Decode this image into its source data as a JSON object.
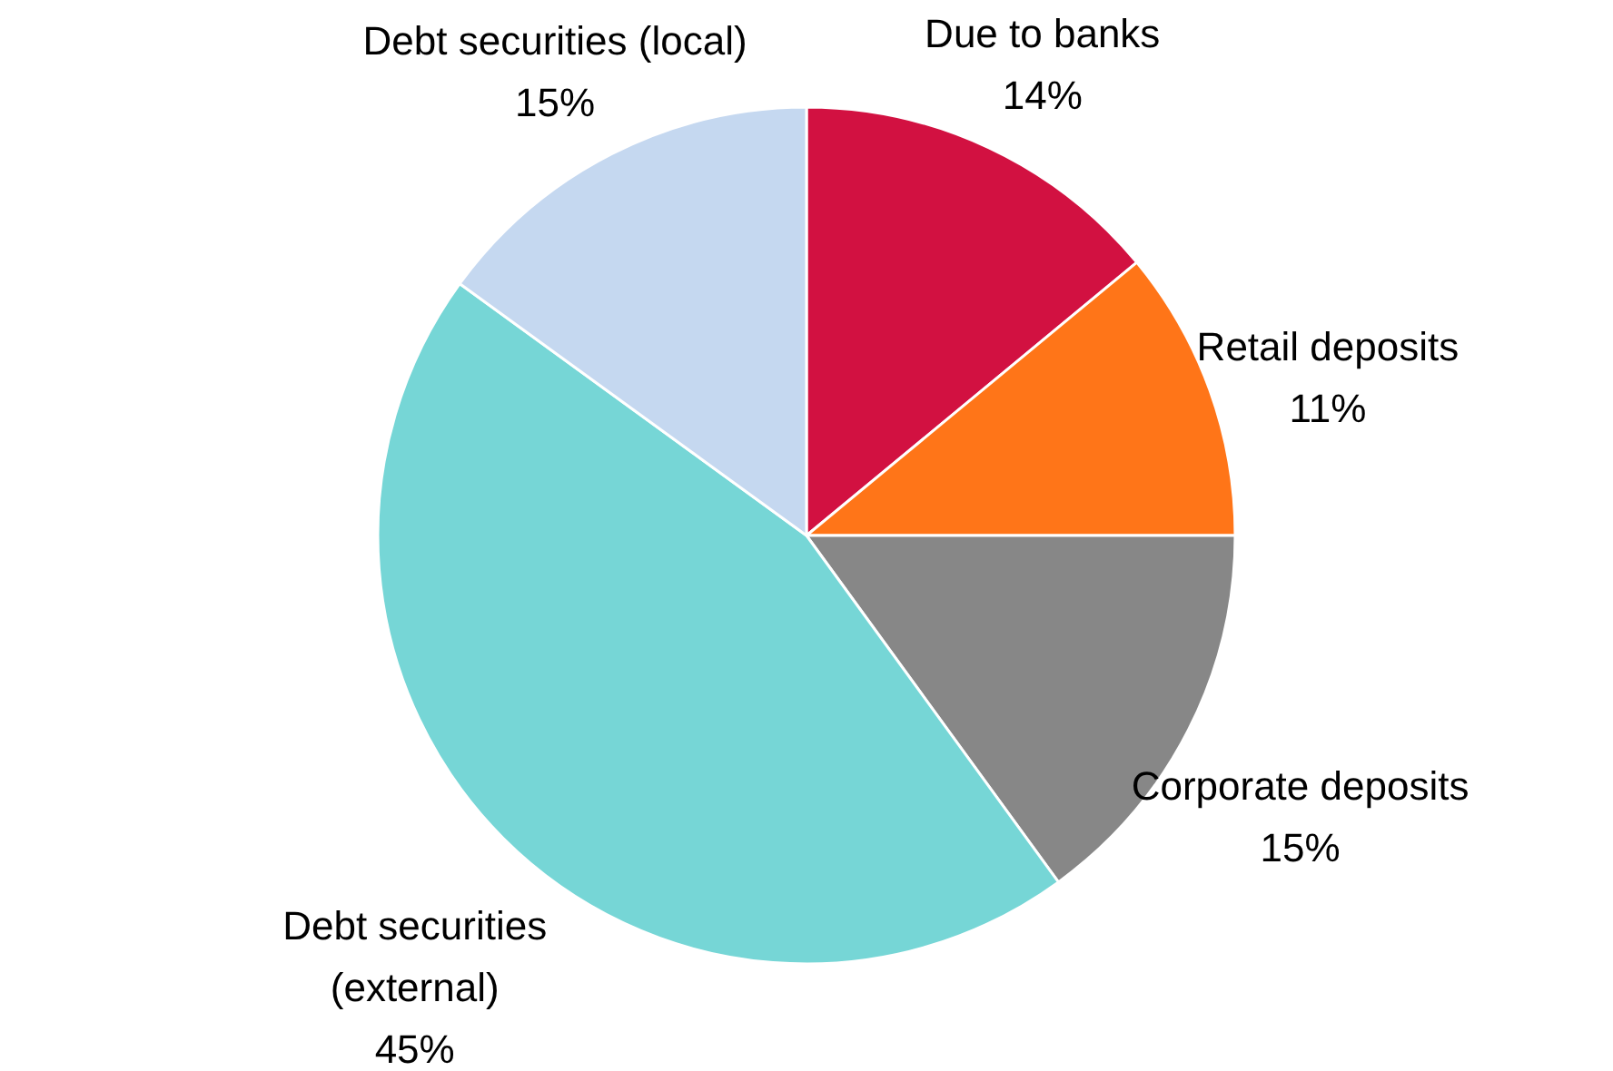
{
  "chart_data": {
    "type": "pie",
    "categories": [
      "Due to banks",
      "Retail deposits",
      "Corporate deposits",
      "Debt securities (external)",
      "Debt securities (local)"
    ],
    "values": [
      14,
      11,
      15,
      45,
      15
    ],
    "value_labels": [
      "14%",
      "11%",
      "15%",
      "45%",
      "15%"
    ],
    "colors": [
      "#d21141",
      "#ff7518",
      "#878787",
      "#76d6d6",
      "#c5d8f0"
    ]
  }
}
